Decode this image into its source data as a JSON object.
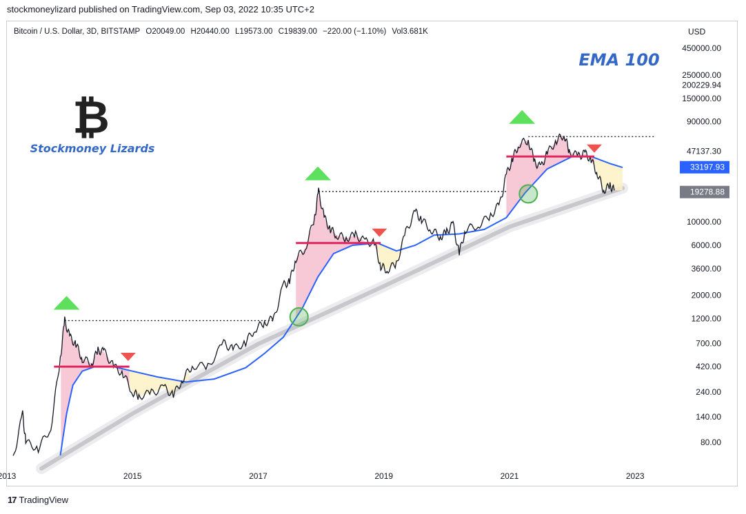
{
  "header": {
    "publisher_line": "stockmoneylizard published on TradingView.com, Sep 03, 2022 10:35 UTC+2"
  },
  "legend": {
    "symbol": "Bitcoin / U.S. Dollar, 3D, BITSTAMP",
    "open": "O20049.00",
    "high": "H20440.00",
    "low": "L19573.00",
    "close": "C19839.00",
    "change": "−220.00 (−1.10%)",
    "volume": "Vol3.681K"
  },
  "footer": {
    "brand": "TradingView",
    "logo_glyph": "17"
  },
  "colors": {
    "price": "#131722",
    "ema": "#2962ff",
    "band": "#c8c8cc",
    "top_fill": "#f6bfd0",
    "bottom_fill": "#fdf1c4",
    "support": "#e0245e",
    "up_arrow": "#5ee05e",
    "down_arrow": "#ef5350",
    "circle": "#4caf50",
    "annotation": "#3468c7",
    "axis_text": "#131722"
  },
  "chart_data": {
    "type": "line",
    "title": "EMA 100",
    "brand_label": "Stockmoney Lizards",
    "logo_glyph": "₿",
    "scale": "log",
    "currency": "USD",
    "xlim": [
      2013.0,
      2023.7
    ],
    "ylim": [
      45,
      800000
    ],
    "x_ticks": [
      {
        "x": 2013.0,
        "label": "2013"
      },
      {
        "x": 2015.0,
        "label": "2015"
      },
      {
        "x": 2017.0,
        "label": "2017"
      },
      {
        "x": 2019.0,
        "label": "2019"
      },
      {
        "x": 2021.0,
        "label": "2021"
      },
      {
        "x": 2023.0,
        "label": "2023"
      }
    ],
    "y_ticks": [
      {
        "value": 450000,
        "label": "450000.00"
      },
      {
        "value": 250000,
        "label": "250000.00"
      },
      {
        "value": 200229.94,
        "label": "200229.94"
      },
      {
        "value": 150000,
        "label": "150000.00"
      },
      {
        "value": 90000,
        "label": "90000.00"
      },
      {
        "value": 47137.3,
        "label": "47137.30"
      },
      {
        "value": 10000,
        "label": "10000.00"
      },
      {
        "value": 6000,
        "label": "6000.00"
      },
      {
        "value": 3600,
        "label": "3600.00"
      },
      {
        "value": 2000,
        "label": "2000.00"
      },
      {
        "value": 1200,
        "label": "1200.00"
      },
      {
        "value": 700,
        "label": "700.00"
      },
      {
        "value": 420,
        "label": "420.00"
      },
      {
        "value": 240,
        "label": "240.00"
      },
      {
        "value": 140,
        "label": "140.00"
      },
      {
        "value": 80,
        "label": "80.00"
      }
    ],
    "price_tags": [
      {
        "value": 33197.93,
        "label": "33197.93",
        "color": "#2962ff"
      },
      {
        "value": 19278.88,
        "label": "19278.88",
        "color": "#787b86"
      }
    ],
    "series": [
      {
        "name": "BTCUSD price",
        "color": "#131722",
        "points": [
          [
            2013.1,
            55
          ],
          [
            2013.25,
            150
          ],
          [
            2013.3,
            80
          ],
          [
            2013.5,
            70
          ],
          [
            2013.7,
            110
          ],
          [
            2013.85,
            500
          ],
          [
            2013.92,
            1150
          ],
          [
            2014.0,
            800
          ],
          [
            2014.1,
            680
          ],
          [
            2014.2,
            500
          ],
          [
            2014.35,
            450
          ],
          [
            2014.45,
            600
          ],
          [
            2014.55,
            580
          ],
          [
            2014.7,
            420
          ],
          [
            2014.85,
            360
          ],
          [
            2015.0,
            240
          ],
          [
            2015.1,
            220
          ],
          [
            2015.3,
            235
          ],
          [
            2015.5,
            265
          ],
          [
            2015.65,
            225
          ],
          [
            2015.8,
            320
          ],
          [
            2015.95,
            430
          ],
          [
            2016.2,
            420
          ],
          [
            2016.45,
            700
          ],
          [
            2016.6,
            610
          ],
          [
            2016.8,
            720
          ],
          [
            2016.95,
            960
          ],
          [
            2017.1,
            1100
          ],
          [
            2017.25,
            1200
          ],
          [
            2017.4,
            2500
          ],
          [
            2017.5,
            2700
          ],
          [
            2017.6,
            4500
          ],
          [
            2017.75,
            5600
          ],
          [
            2017.9,
            11000
          ],
          [
            2017.96,
            19500
          ],
          [
            2018.05,
            11000
          ],
          [
            2018.15,
            8500
          ],
          [
            2018.25,
            7500
          ],
          [
            2018.4,
            7000
          ],
          [
            2018.55,
            7500
          ],
          [
            2018.7,
            6500
          ],
          [
            2018.85,
            6300
          ],
          [
            2018.95,
            3800
          ],
          [
            2019.05,
            3500
          ],
          [
            2019.2,
            4000
          ],
          [
            2019.35,
            8000
          ],
          [
            2019.5,
            12500
          ],
          [
            2019.6,
            10500
          ],
          [
            2019.75,
            8500
          ],
          [
            2019.9,
            7200
          ],
          [
            2020.0,
            8000
          ],
          [
            2020.1,
            9500
          ],
          [
            2020.2,
            5000
          ],
          [
            2020.3,
            8500
          ],
          [
            2020.5,
            9300
          ],
          [
            2020.7,
            11500
          ],
          [
            2020.85,
            15000
          ],
          [
            2020.95,
            28000
          ],
          [
            2021.05,
            40000
          ],
          [
            2021.15,
            55000
          ],
          [
            2021.3,
            60000
          ],
          [
            2021.4,
            37000
          ],
          [
            2021.5,
            33000
          ],
          [
            2021.6,
            45000
          ],
          [
            2021.75,
            60000
          ],
          [
            2021.87,
            68000
          ],
          [
            2021.95,
            47000
          ],
          [
            2022.1,
            42000
          ],
          [
            2022.2,
            45000
          ],
          [
            2022.3,
            39000
          ],
          [
            2022.4,
            29000
          ],
          [
            2022.5,
            20000
          ],
          [
            2022.6,
            22000
          ],
          [
            2022.67,
            20000
          ]
        ]
      },
      {
        "name": "EMA 100",
        "color": "#2962ff",
        "points": [
          [
            2013.85,
            60
          ],
          [
            2013.95,
            150
          ],
          [
            2014.05,
            280
          ],
          [
            2014.2,
            380
          ],
          [
            2014.4,
            420
          ],
          [
            2014.7,
            420
          ],
          [
            2015.0,
            380
          ],
          [
            2015.4,
            335
          ],
          [
            2015.85,
            300
          ],
          [
            2016.3,
            320
          ],
          [
            2016.8,
            410
          ],
          [
            2017.1,
            560
          ],
          [
            2017.4,
            800
          ],
          [
            2017.7,
            1500
          ],
          [
            2017.95,
            3000
          ],
          [
            2018.2,
            5000
          ],
          [
            2018.5,
            6000
          ],
          [
            2018.9,
            6300
          ],
          [
            2019.2,
            5300
          ],
          [
            2019.5,
            6000
          ],
          [
            2019.8,
            7500
          ],
          [
            2020.2,
            7700
          ],
          [
            2020.6,
            8500
          ],
          [
            2020.95,
            11000
          ],
          [
            2021.25,
            19000
          ],
          [
            2021.6,
            32000
          ],
          [
            2022.0,
            42000
          ],
          [
            2022.3,
            42000
          ],
          [
            2022.6,
            36000
          ],
          [
            2022.8,
            33000
          ]
        ]
      },
      {
        "name": "Long-term support band",
        "color": "#c8c8cc",
        "points": [
          [
            2013.55,
            45
          ],
          [
            2015.0,
            150
          ],
          [
            2017.0,
            690
          ],
          [
            2019.0,
            2450
          ],
          [
            2021.0,
            9000
          ],
          [
            2022.8,
            21000
          ]
        ]
      }
    ],
    "annotations": [
      {
        "kind": "dotted_ath_line",
        "x": [
          2013.92,
          2017.25
        ],
        "y": 1150
      },
      {
        "kind": "dotted_ath_line",
        "x": [
          2017.96,
          2020.95
        ],
        "y": 19500
      },
      {
        "kind": "dotted_ath_line",
        "x": [
          2021.3,
          2023.3
        ],
        "y": 65000
      },
      {
        "kind": "support_line",
        "x": [
          2013.75,
          2014.95
        ],
        "y": 420
      },
      {
        "kind": "support_line",
        "x": [
          2017.6,
          2018.95
        ],
        "y": 6300
      },
      {
        "kind": "support_line",
        "x": [
          2020.95,
          2022.35
        ],
        "y": 42000
      },
      {
        "kind": "peak_arrow_up",
        "x": 2013.95,
        "y": 1700
      },
      {
        "kind": "peak_arrow_up",
        "x": 2017.95,
        "y": 29000
      },
      {
        "kind": "peak_arrow_up",
        "x": 2021.2,
        "y": 100000
      },
      {
        "kind": "breakdown_arrow_down",
        "x": 2014.93,
        "y": 520
      },
      {
        "kind": "breakdown_arrow_down",
        "x": 2018.93,
        "y": 7900
      },
      {
        "kind": "breakdown_arrow_down",
        "x": 2022.35,
        "y": 50000
      },
      {
        "kind": "ema_touch_circle",
        "x": 2017.65,
        "y": 1250
      },
      {
        "kind": "ema_touch_circle",
        "x": 2021.3,
        "y": 18500
      }
    ]
  }
}
